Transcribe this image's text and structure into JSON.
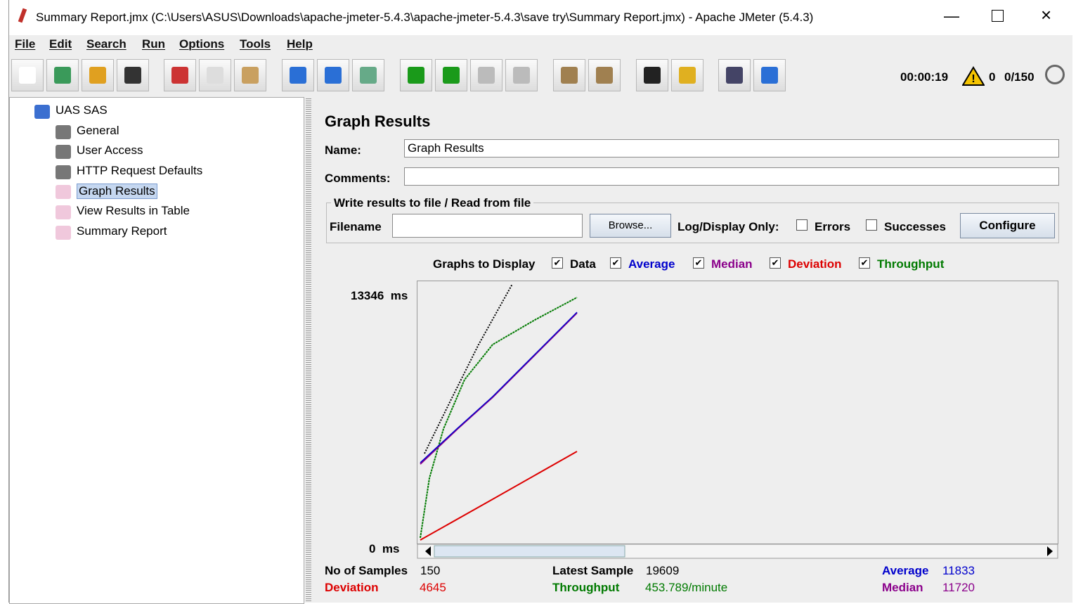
{
  "window": {
    "title": "Summary Report.jmx (C:\\Users\\ASUS\\Downloads\\apache-jmeter-5.4.3\\apache-jmeter-5.4.3\\save try\\Summary Report.jmx) - Apache JMeter (5.4.3)"
  },
  "menu": [
    "File",
    "Edit",
    "Search",
    "Run",
    "Options",
    "Tools",
    "Help"
  ],
  "toolbar": {
    "elapsed": "00:00:19",
    "warnings": 0,
    "threads": "0/150"
  },
  "tree": [
    "UAS SAS",
    "General",
    "User Access",
    "HTTP Request Defaults",
    "Graph Results",
    "View Results in Table",
    "Summary Report"
  ],
  "panel": {
    "title": "Graph Results",
    "name_label": "Name:",
    "name_value": "Graph Results",
    "comments_label": "Comments:",
    "file_group": "Write results to file / Read from file",
    "filename_label": "Filename",
    "browse": "Browse...",
    "log_display": "Log/Display Only:",
    "errors": "Errors",
    "successes": "Successes",
    "configure": "Configure"
  },
  "graphs": {
    "label": "Graphs to Display",
    "options": [
      {
        "name": "Data",
        "color": "#000000"
      },
      {
        "name": "Average",
        "color": "#0000cc"
      },
      {
        "name": "Median",
        "color": "#8b008b"
      },
      {
        "name": "Deviation",
        "color": "#dd0000"
      },
      {
        "name": "Throughput",
        "color": "#007a00"
      }
    ],
    "y_max": "13346",
    "y_min": "0",
    "unit": "ms"
  },
  "stats": [
    {
      "label": "No of Samples",
      "value": 150,
      "color": "#000000"
    },
    {
      "label": "Latest Sample",
      "value": 19609,
      "color": "#000000"
    },
    {
      "label": "Average",
      "value": 11833,
      "color": "#0000cc"
    },
    {
      "label": "Deviation",
      "value": 4645,
      "color": "#dd0000"
    },
    {
      "label": "Throughput",
      "value": "453.789/minute",
      "color": "#007a00"
    },
    {
      "label": "Median",
      "value": 11720,
      "color": "#8b008b"
    }
  ]
}
